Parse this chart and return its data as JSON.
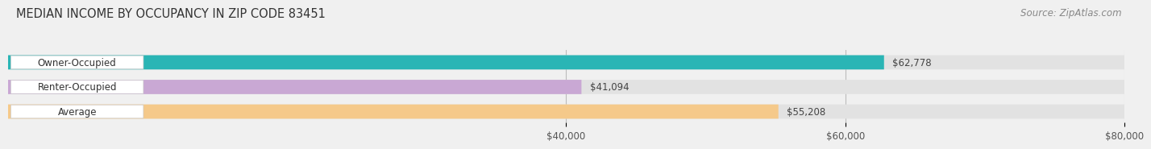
{
  "title": "MEDIAN INCOME BY OCCUPANCY IN ZIP CODE 83451",
  "source": "Source: ZipAtlas.com",
  "categories": [
    "Owner-Occupied",
    "Renter-Occupied",
    "Average"
  ],
  "values": [
    62778,
    41094,
    55208
  ],
  "bar_colors": [
    "#2ab5b5",
    "#c9a8d4",
    "#f5c98a"
  ],
  "bar_labels": [
    "$62,778",
    "$41,094",
    "$55,208"
  ],
  "xlim": [
    0,
    80000
  ],
  "xticks": [
    40000,
    60000,
    80000
  ],
  "xtick_labels": [
    "$40,000",
    "$60,000",
    "$80,000"
  ],
  "bg_color": "#f0f0f0",
  "bar_bg_color": "#e2e2e2",
  "label_bg_color": "#ffffff",
  "title_fontsize": 10.5,
  "source_fontsize": 8.5,
  "label_fontsize": 8.5,
  "tick_fontsize": 8.5
}
